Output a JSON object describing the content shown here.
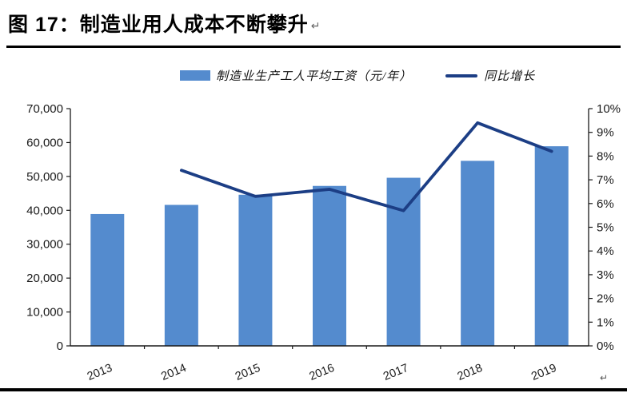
{
  "figure": {
    "title": "图 17：制造业用人成本不断攀升",
    "return_mark": "↵"
  },
  "chart_data": {
    "type": "bar",
    "subtype": "bar+line combo, dual axis",
    "categories": [
      "2013",
      "2014",
      "2015",
      "2016",
      "2017",
      "2018",
      "2019"
    ],
    "series": [
      {
        "name": "制造业生产工人平均工资（元/年）",
        "type": "bar",
        "axis": "left",
        "color": "#548BCE",
        "values": [
          38900,
          41600,
          44600,
          47200,
          49600,
          54600,
          58900
        ]
      },
      {
        "name": "同比增长",
        "type": "line",
        "axis": "right",
        "color": "#1C3E85",
        "unit": "%",
        "values": [
          null,
          7.4,
          6.3,
          6.6,
          5.7,
          9.4,
          8.2
        ]
      }
    ],
    "left_axis": {
      "min": 0,
      "max": 70000,
      "step": 10000,
      "tick_labels": [
        "70,000",
        "60,000",
        "50,000",
        "40,000",
        "30,000",
        "20,000",
        "10,000",
        "0"
      ]
    },
    "right_axis": {
      "min": 0,
      "max": 10,
      "step": 1,
      "unit": "%",
      "tick_labels": [
        "10%",
        "9%",
        "8%",
        "7%",
        "6%",
        "5%",
        "4%",
        "3%",
        "2%",
        "1%",
        "0%"
      ]
    },
    "legend_position": "top",
    "grid": false
  }
}
